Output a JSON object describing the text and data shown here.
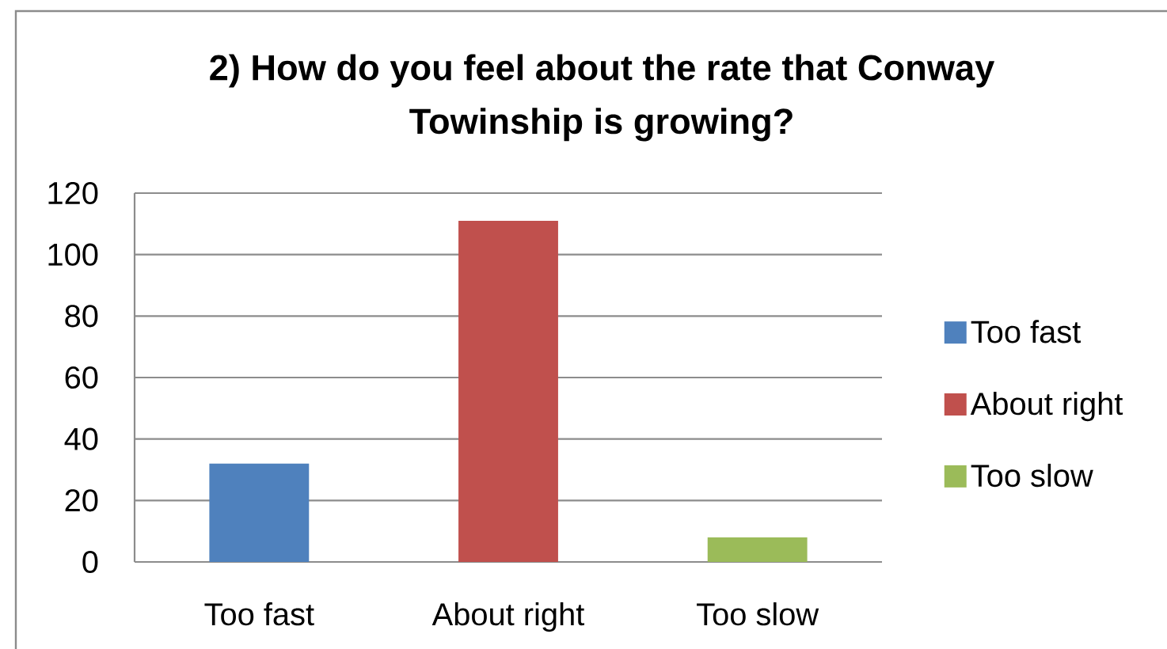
{
  "chart_data": {
    "type": "bar",
    "title": "2) How do you feel about the rate that Conway Towinship is growing?",
    "categories": [
      "Too fast",
      "About right",
      "Too slow"
    ],
    "series": [
      {
        "name": "Too fast",
        "color": "#4f81bd",
        "values": [
          32,
          null,
          null
        ]
      },
      {
        "name": "About right",
        "color": "#c0504d",
        "values": [
          null,
          111,
          null
        ]
      },
      {
        "name": "Too slow",
        "color": "#9bbb59",
        "values": [
          null,
          null,
          8
        ]
      }
    ],
    "ylim": [
      0,
      120
    ],
    "yticks": [
      0,
      20,
      40,
      60,
      80,
      100,
      120
    ],
    "grid": "y",
    "legend": "right"
  }
}
